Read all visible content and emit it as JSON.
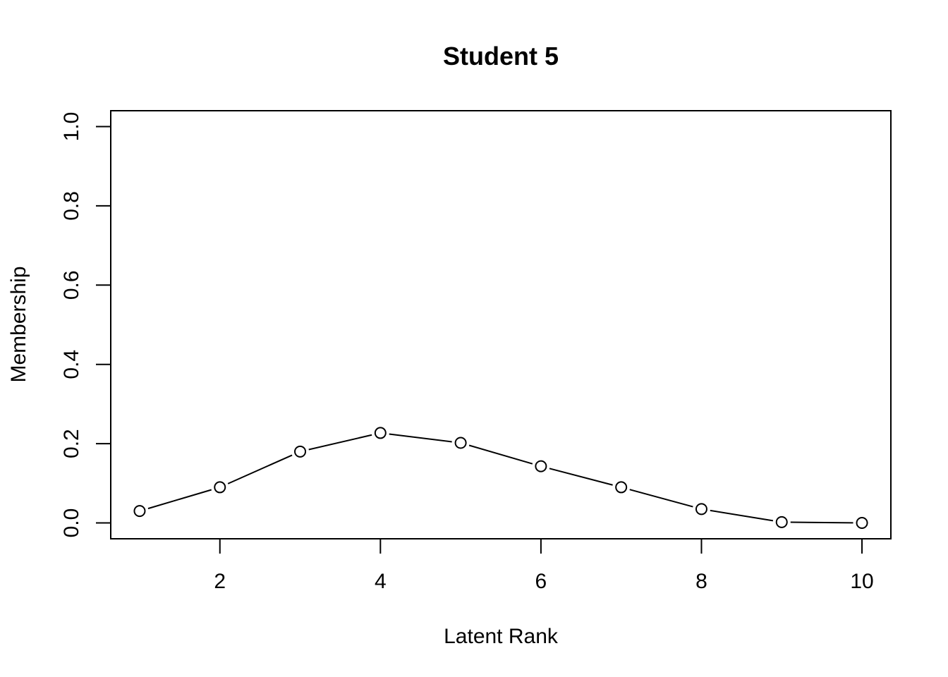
{
  "chart_data": {
    "type": "line",
    "title": "Student 5",
    "xlabel": "Latent Rank",
    "ylabel": "Membership",
    "x": [
      1,
      2,
      3,
      4,
      5,
      6,
      7,
      8,
      9,
      10
    ],
    "series": [
      {
        "values": [
          0.03,
          0.09,
          0.18,
          0.227,
          0.202,
          0.143,
          0.09,
          0.035,
          0.002,
          0.0
        ]
      }
    ],
    "xlim": [
      0.64,
      10.36
    ],
    "ylim": [
      -0.04,
      1.04
    ],
    "x_ticks": [
      2,
      4,
      6,
      8,
      10
    ],
    "x_tick_labels": [
      "2",
      "4",
      "6",
      "8",
      "10"
    ],
    "y_ticks": [
      0.0,
      0.2,
      0.4,
      0.6,
      0.8,
      1.0
    ],
    "y_tick_labels": [
      "0.0",
      "0.2",
      "0.4",
      "0.6",
      "0.8",
      "1.0"
    ],
    "marker": "open-circle",
    "grid": false,
    "legend": "none",
    "colors": {
      "line": "#000000",
      "marker_fill": "#ffffff",
      "background": "#ffffff"
    }
  }
}
